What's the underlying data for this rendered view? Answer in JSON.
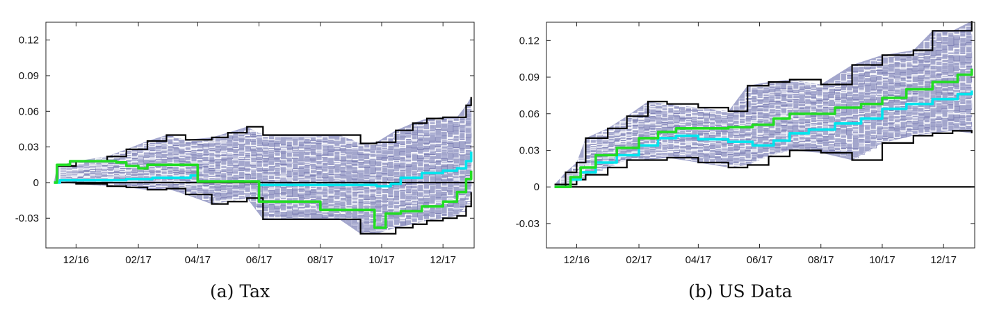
{
  "figure": {
    "captions": [
      "(a)  Tax",
      "(b)  US Data"
    ]
  },
  "chart_data": [
    {
      "type": "line",
      "panel_caption": "(a)  Tax",
      "xlabel": "",
      "ylabel": "",
      "x_tick_labels": [
        "12/16",
        "02/17",
        "04/17",
        "06/17",
        "08/17",
        "10/17",
        "12/17"
      ],
      "y_tick_labels": [
        "-0.03",
        "0",
        "0.03",
        "0.06",
        "0.09",
        "0.12"
      ],
      "ylim": [
        -0.055,
        0.135
      ],
      "xlim": [
        "2016-11-01",
        "2018-01-01"
      ],
      "grid": false,
      "legend": "none",
      "band": {
        "x": [
          "2016-11-09",
          "2016-11-12",
          "2016-12-01",
          "2017-01-01",
          "2017-01-20",
          "2017-02-10",
          "2017-03-01",
          "2017-03-20",
          "2017-04-15",
          "2017-05-01",
          "2017-05-20",
          "2017-06-05",
          "2017-07-01",
          "2017-08-01",
          "2017-08-20",
          "2017-09-10",
          "2017-09-26",
          "2017-10-15",
          "2017-11-01",
          "2017-11-15",
          "2017-12-01",
          "2017-12-15",
          "2017-12-24",
          "2017-12-29"
        ],
        "upper": [
          0.0,
          0.014,
          0.018,
          0.022,
          0.028,
          0.035,
          0.04,
          0.036,
          0.038,
          0.042,
          0.047,
          0.04,
          0.04,
          0.04,
          0.04,
          0.033,
          0.034,
          0.044,
          0.05,
          0.054,
          0.055,
          0.055,
          0.065,
          0.072
        ],
        "lower": [
          0.0,
          0.0,
          -0.001,
          -0.003,
          -0.004,
          -0.006,
          -0.005,
          -0.01,
          -0.018,
          -0.016,
          -0.013,
          -0.031,
          -0.031,
          -0.031,
          -0.031,
          -0.043,
          -0.043,
          -0.038,
          -0.035,
          -0.032,
          -0.03,
          -0.028,
          -0.02,
          -0.008
        ]
      },
      "series": [
        {
          "color": "#00e5ee",
          "x": [
            "2016-11-09",
            "2016-11-15",
            "2016-12-15",
            "2017-01-20",
            "2017-02-15",
            "2017-03-10",
            "2017-03-25",
            "2017-04-01",
            "2017-05-20",
            "2017-06-01",
            "2017-08-01",
            "2017-09-01",
            "2017-09-26",
            "2017-10-10",
            "2017-10-20",
            "2017-11-10",
            "2017-12-01",
            "2017-12-15",
            "2017-12-24",
            "2017-12-29"
          ],
          "y": [
            0.0,
            0.002,
            0.002,
            0.003,
            0.004,
            0.004,
            0.006,
            0.001,
            0.001,
            -0.002,
            -0.002,
            -0.002,
            -0.003,
            -0.001,
            0.004,
            0.008,
            0.01,
            0.012,
            0.018,
            0.026
          ]
        },
        {
          "color": "#22dd22",
          "x": [
            "2016-11-09",
            "2016-11-12",
            "2016-11-25",
            "2017-01-10",
            "2017-01-20",
            "2017-02-01",
            "2017-02-10",
            "2017-03-25",
            "2017-04-01",
            "2017-05-20",
            "2017-06-01",
            "2017-07-10",
            "2017-08-01",
            "2017-09-01",
            "2017-09-24",
            "2017-10-05",
            "2017-10-20",
            "2017-11-10",
            "2017-12-01",
            "2017-12-15",
            "2017-12-24",
            "2017-12-29"
          ],
          "y": [
            0.0,
            0.015,
            0.018,
            0.017,
            0.014,
            0.012,
            0.015,
            0.015,
            0.001,
            0.001,
            -0.016,
            -0.016,
            -0.023,
            -0.023,
            -0.038,
            -0.026,
            -0.024,
            -0.02,
            -0.016,
            -0.008,
            0.003,
            0.01
          ]
        }
      ]
    },
    {
      "type": "line",
      "panel_caption": "(b)  US Data",
      "xlabel": "",
      "ylabel": "",
      "x_tick_labels": [
        "12/16",
        "02/17",
        "04/17",
        "06/17",
        "08/17",
        "10/17",
        "12/17"
      ],
      "y_tick_labels": [
        "-0.03",
        "0",
        "0.03",
        "0.06",
        "0.09",
        "0.12"
      ],
      "ylim": [
        -0.05,
        0.135
      ],
      "xlim": [
        "2016-11-01",
        "2018-01-01"
      ],
      "grid": false,
      "legend": "none",
      "band": {
        "x": [
          "2016-11-09",
          "2016-11-20",
          "2016-12-01",
          "2016-12-10",
          "2017-01-01",
          "2017-01-20",
          "2017-02-10",
          "2017-03-01",
          "2017-04-01",
          "2017-05-01",
          "2017-05-20",
          "2017-06-10",
          "2017-07-01",
          "2017-08-01",
          "2017-09-01",
          "2017-10-01",
          "2017-11-01",
          "2017-11-20",
          "2017-12-10",
          "2017-12-29"
        ],
        "upper": [
          0.002,
          0.012,
          0.02,
          0.04,
          0.048,
          0.058,
          0.07,
          0.068,
          0.065,
          0.062,
          0.083,
          0.086,
          0.088,
          0.084,
          0.1,
          0.108,
          0.112,
          0.128,
          0.128,
          0.136
        ],
        "lower": [
          0.0,
          0.002,
          0.006,
          0.01,
          0.016,
          0.022,
          0.022,
          0.024,
          0.02,
          0.016,
          0.018,
          0.025,
          0.03,
          0.028,
          0.022,
          0.036,
          0.042,
          0.044,
          0.046,
          0.044
        ]
      },
      "series": [
        {
          "color": "#00e5ee",
          "x": [
            "2016-11-09",
            "2016-11-25",
            "2016-12-05",
            "2016-12-20",
            "2017-01-10",
            "2017-02-01",
            "2017-02-20",
            "2017-03-10",
            "2017-04-01",
            "2017-05-01",
            "2017-05-25",
            "2017-06-15",
            "2017-07-01",
            "2017-07-20",
            "2017-08-15",
            "2017-09-10",
            "2017-10-01",
            "2017-10-25",
            "2017-11-20",
            "2017-12-15",
            "2017-12-29"
          ],
          "y": [
            0.0,
            0.006,
            0.012,
            0.02,
            0.026,
            0.034,
            0.04,
            0.042,
            0.039,
            0.037,
            0.034,
            0.038,
            0.044,
            0.047,
            0.052,
            0.056,
            0.064,
            0.068,
            0.072,
            0.076,
            0.079
          ]
        },
        {
          "color": "#22dd22",
          "x": [
            "2016-11-09",
            "2016-11-25",
            "2016-12-05",
            "2016-12-20",
            "2017-01-10",
            "2017-02-01",
            "2017-02-20",
            "2017-03-10",
            "2017-04-01",
            "2017-05-01",
            "2017-05-25",
            "2017-06-15",
            "2017-07-01",
            "2017-07-20",
            "2017-08-15",
            "2017-09-10",
            "2017-10-01",
            "2017-10-25",
            "2017-11-20",
            "2017-12-15",
            "2017-12-29"
          ],
          "y": [
            0.0,
            0.008,
            0.016,
            0.026,
            0.032,
            0.04,
            0.045,
            0.048,
            0.048,
            0.049,
            0.051,
            0.056,
            0.06,
            0.06,
            0.065,
            0.068,
            0.073,
            0.08,
            0.086,
            0.092,
            0.097
          ]
        }
      ]
    }
  ]
}
